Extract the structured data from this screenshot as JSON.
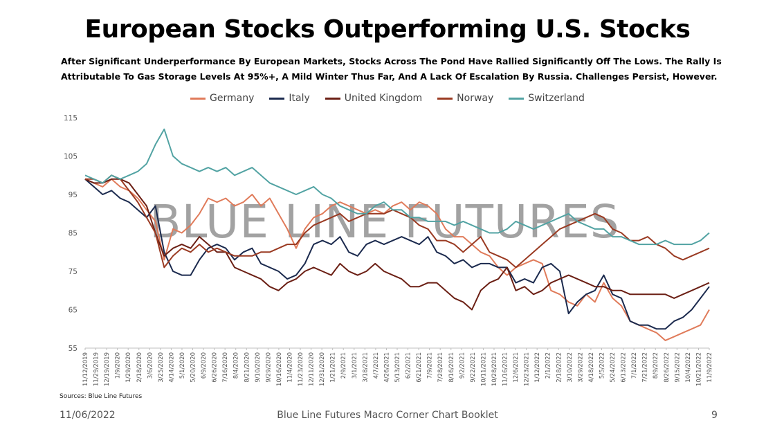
{
  "title": "European Stocks Outperforming U.S. Stocks",
  "subtitle_lines": [
    "After Significant Underperformance By European Markets, Stocks Across The Pond Have Rallied Significantly Off The Lows. The Rally Is",
    "Attributable To Gas Storage Levels At 95%+, A Mild Winter Thus Far, And A Lack Of Escalation By Russia. Challenges Persist, However."
  ],
  "watermark": "BLUE LINE FUTURES",
  "source": "Sources: Blue Line Futures",
  "footer": {
    "date": "11/06/2022",
    "center": "Blue Line Futures Macro Corner Chart Booklet",
    "page": "9"
  },
  "chart_data": {
    "type": "line",
    "ylim": [
      55,
      115
    ],
    "yticks": [
      55,
      65,
      75,
      85,
      95,
      105,
      115
    ],
    "grid": false,
    "legend_position": "top",
    "x_tick_labels": [
      "11/12/2019",
      "11/29/2019",
      "12/19/2019",
      "1/9/2020",
      "1/29/2020",
      "2/18/2020",
      "3/6/2020",
      "3/25/2020",
      "4/14/2020",
      "5/1/2020",
      "5/20/2020",
      "6/9/2020",
      "6/26/2020",
      "7/16/2020",
      "8/4/2020",
      "8/21/2020",
      "9/10/2020",
      "9/29/2020",
      "10/16/2020",
      "11/4/2020",
      "11/23/2020",
      "12/11/2020",
      "12/31/2020",
      "1/21/2021",
      "2/9/2021",
      "3/1/2021",
      "3/18/2021",
      "4/7/2021",
      "4/26/2021",
      "5/13/2021",
      "6/2/2021",
      "6/21/2021",
      "7/9/2021",
      "7/28/2021",
      "8/16/2021",
      "9/2/2021",
      "9/22/2021",
      "10/11/2021",
      "10/28/2021",
      "11/16/2021",
      "12/6/2021",
      "12/23/2021",
      "1/12/2022",
      "2/1/2022",
      "2/18/2022",
      "3/10/2022",
      "3/29/2022",
      "4/18/2022",
      "5/5/2022",
      "5/24/2022",
      "6/13/2022",
      "7/1/2022",
      "7/21/2022",
      "8/9/2022",
      "8/26/2022",
      "9/15/2022",
      "10/4/2022",
      "10/21/2022",
      "11/9/2022"
    ],
    "series": [
      {
        "name": "Germany",
        "color": "#e07b5a",
        "values": [
          99,
          98,
          97,
          99,
          97,
          96,
          94,
          91,
          88,
          78,
          86,
          85,
          87,
          90,
          94,
          93,
          94,
          92,
          93,
          95,
          92,
          94,
          90,
          86,
          81,
          86,
          89,
          90,
          92,
          93,
          92,
          91,
          90,
          91,
          90,
          92,
          93,
          91,
          93,
          92,
          90,
          86,
          84,
          84,
          82,
          80,
          79,
          76,
          74,
          76,
          77,
          78,
          77,
          70,
          69,
          67,
          66,
          69,
          67,
          72,
          68,
          66,
          62,
          61,
          60,
          59,
          57,
          58,
          59,
          60,
          61,
          65
        ]
      },
      {
        "name": "Italy",
        "color": "#1b2a4e",
        "values": [
          99,
          97,
          95,
          96,
          94,
          93,
          91,
          89,
          92,
          80,
          75,
          74,
          74,
          78,
          81,
          82,
          81,
          78,
          80,
          81,
          77,
          76,
          75,
          73,
          74,
          77,
          82,
          83,
          82,
          84,
          80,
          79,
          82,
          83,
          82,
          83,
          84,
          83,
          82,
          84,
          80,
          79,
          77,
          78,
          76,
          77,
          77,
          76,
          76,
          72,
          73,
          72,
          76,
          77,
          75,
          64,
          67,
          69,
          70,
          74,
          69,
          68,
          62,
          61,
          61,
          60,
          60,
          62,
          63,
          65,
          68,
          71
        ]
      },
      {
        "name": "United Kingdom",
        "color": "#6b1f14",
        "values": [
          99,
          98,
          98,
          99,
          99,
          98,
          95,
          92,
          85,
          79,
          81,
          82,
          81,
          84,
          82,
          80,
          80,
          76,
          75,
          74,
          73,
          71,
          70,
          72,
          73,
          75,
          76,
          75,
          74,
          77,
          75,
          74,
          75,
          77,
          75,
          74,
          73,
          71,
          71,
          72,
          72,
          70,
          68,
          67,
          65,
          70,
          72,
          73,
          76,
          70,
          71,
          69,
          70,
          72,
          73,
          74,
          73,
          72,
          71,
          71,
          70,
          70,
          69,
          69,
          69,
          69,
          69,
          68,
          69,
          70,
          71,
          72
        ]
      },
      {
        "name": "Norway",
        "color": "#9a3a22",
        "values": [
          99,
          99,
          98,
          100,
          99,
          96,
          93,
          89,
          85,
          76,
          79,
          81,
          80,
          82,
          80,
          81,
          80,
          79,
          79,
          79,
          80,
          80,
          81,
          82,
          82,
          85,
          87,
          88,
          89,
          90,
          88,
          89,
          90,
          90,
          90,
          91,
          90,
          89,
          87,
          86,
          83,
          83,
          82,
          80,
          82,
          84,
          80,
          79,
          78,
          76,
          78,
          80,
          82,
          84,
          86,
          87,
          88,
          89,
          90,
          89,
          86,
          85,
          83,
          83,
          84,
          82,
          81,
          79,
          78,
          79,
          80,
          81
        ]
      },
      {
        "name": "Switzerland",
        "color": "#52a3a3",
        "values": [
          100,
          99,
          98,
          100,
          99,
          100,
          101,
          103,
          108,
          112,
          105,
          103,
          102,
          101,
          102,
          101,
          102,
          100,
          101,
          102,
          100,
          98,
          97,
          96,
          95,
          96,
          97,
          95,
          94,
          92,
          91,
          90,
          90,
          92,
          93,
          91,
          91,
          89,
          89,
          88,
          88,
          88,
          87,
          88,
          87,
          86,
          85,
          85,
          86,
          88,
          87,
          86,
          87,
          88,
          89,
          90,
          88,
          87,
          86,
          86,
          84,
          84,
          83,
          82,
          82,
          82,
          83,
          82,
          82,
          82,
          83,
          85
        ]
      }
    ]
  }
}
